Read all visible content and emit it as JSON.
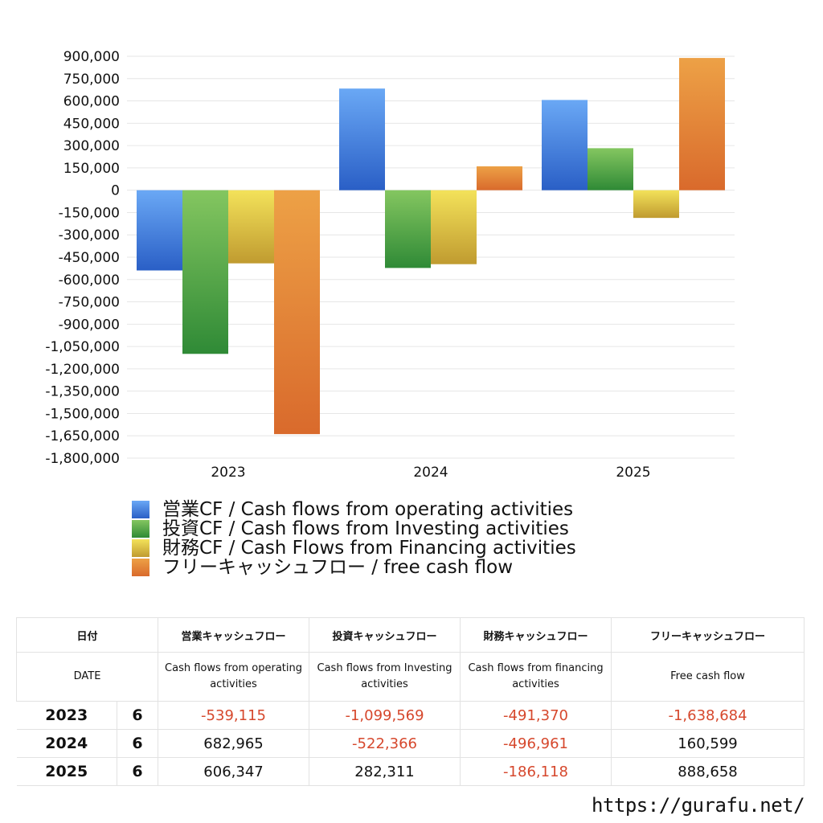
{
  "chart_data": {
    "type": "bar",
    "categories": [
      "2023",
      "2024",
      "2025"
    ],
    "series": [
      {
        "name": "営業CF / Cash flows from operating activities",
        "values": [
          -539115,
          682965,
          606347
        ],
        "color": "#3d7fe0"
      },
      {
        "name": "投資CF / Cash flows from Investing activities",
        "values": [
          -1099569,
          -522366,
          282311
        ],
        "color": "#4fa845"
      },
      {
        "name": "財務CF / Cash Flows from Financing activities",
        "values": [
          -491370,
          -496961,
          -186118
        ],
        "color": "#e0c43a"
      },
      {
        "name": "フリーキャッシュフロー / free cash flow",
        "values": [
          -1638684,
          160599,
          888658
        ],
        "color": "#e58a32"
      }
    ],
    "ylim": [
      -1800000,
      900000
    ],
    "yticks": [
      "900,000",
      "750,000",
      "600,000",
      "450,000",
      "300,000",
      "150,000",
      "0",
      "-150,000",
      "-300,000",
      "-450,000",
      "-600,000",
      "-750,000",
      "-900,000",
      "-1,050,000",
      "-1,200,000",
      "-1,350,000",
      "-1,500,000",
      "-1,650,000",
      "-1,800,000"
    ],
    "grid": true,
    "legend_position": "bottom-left"
  },
  "table": {
    "header_jp": [
      "日付",
      "",
      "営業キャッシュフロー",
      "投資キャッシュフロー",
      "財務キャッシュフロー",
      "フリーキャッシュフロー"
    ],
    "header_en": [
      "DATE",
      "",
      "Cash flows from operating activities",
      "Cash flows from Investing activities",
      "Cash flows from financing activities",
      "Free cash flow"
    ],
    "rows": [
      {
        "year": "2023",
        "month": "6",
        "values": [
          "-539,115",
          "-1,099,569",
          "-491,370",
          "-1,638,684"
        ]
      },
      {
        "year": "2024",
        "month": "6",
        "values": [
          "682,965",
          "-522,366",
          "-496,961",
          "160,599"
        ]
      },
      {
        "year": "2025",
        "month": "6",
        "values": [
          "606,347",
          "282,311",
          "-186,118",
          "888,658"
        ]
      }
    ]
  },
  "footer": {
    "url": "https://gurafu.net/"
  },
  "colors": {
    "negative_text": "#d6482d",
    "grid": "#e6e6e6"
  }
}
